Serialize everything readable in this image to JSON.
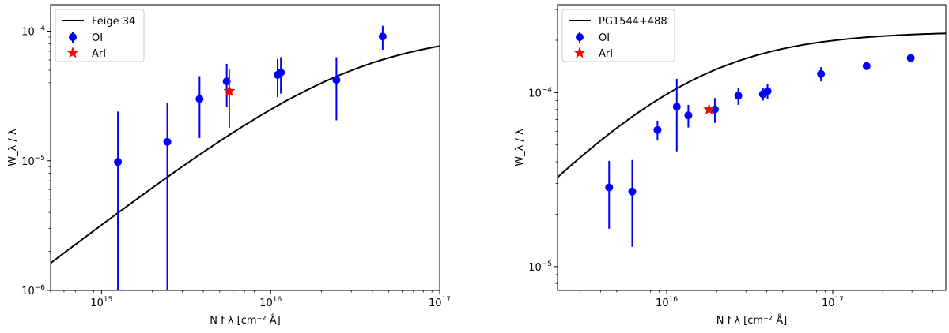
{
  "chart_data": [
    {
      "type": "scatter",
      "xscale": "log",
      "yscale": "log",
      "xlim": [
        500000000000000.0,
        1e+17
      ],
      "ylim": [
        1e-06,
        0.00016
      ],
      "xticks": [
        {
          "value": 1000000000000000.0,
          "base": "10",
          "exp": "15"
        },
        {
          "value": 1e+16,
          "base": "10",
          "exp": "16"
        },
        {
          "value": 1e+17,
          "base": "10",
          "exp": "17"
        }
      ],
      "yticks": [
        {
          "value": 1e-06,
          "base": "10",
          "exp": "−6"
        },
        {
          "value": 1e-05,
          "base": "10",
          "exp": "−5"
        },
        {
          "value": 0.0001,
          "base": "10",
          "exp": "−4"
        }
      ],
      "xlabel": "N f λ [cm⁻² Å]",
      "ylabel": "W_λ / λ",
      "legend_position": "top-left",
      "curve": {
        "name": "Feige 34",
        "color": "#000000",
        "saturation": 0.0001,
        "c_ratio": 0.33
      },
      "series": [
        {
          "name": "OI",
          "color": "#0000ff",
          "marker": "circle",
          "points": [
            {
              "x": 1250000000000000.0,
              "y": 9.8e-06,
              "ylo": 1e-06,
              "yhi": 2.4e-05
            },
            {
              "x": 2450000000000000.0,
              "y": 1.4e-05,
              "ylo": 1e-06,
              "yhi": 2.8e-05
            },
            {
              "x": 3800000000000000.0,
              "y": 3e-05,
              "ylo": 1.5e-05,
              "yhi": 4.5e-05
            },
            {
              "x": 5500000000000000.0,
              "y": 4.1e-05,
              "ylo": 2.6e-05,
              "yhi": 5.6e-05
            },
            {
              "x": 1.1e+16,
              "y": 4.6e-05,
              "ylo": 3.1e-05,
              "yhi": 6.1e-05
            },
            {
              "x": 1.15e+16,
              "y": 4.8e-05,
              "ylo": 3.3e-05,
              "yhi": 6.3e-05
            },
            {
              "x": 2.45e+16,
              "y": 4.2e-05,
              "ylo": 2.05e-05,
              "yhi": 6.3e-05
            },
            {
              "x": 4.6e+16,
              "y": 9.1e-05,
              "ylo": 7.2e-05,
              "yhi": 0.00011
            }
          ]
        },
        {
          "name": "ArI",
          "color": "#ff0000",
          "marker": "star",
          "points": [
            {
              "x": 5700000000000000.0,
              "y": 3.45e-05,
              "ylo": 1.8e-05,
              "yhi": 5.1e-05
            }
          ]
        }
      ]
    },
    {
      "type": "scatter",
      "xscale": "log",
      "yscale": "log",
      "xlim": [
        2200000000000000.0,
        4.8e+17
      ],
      "ylim": [
        7.3e-06,
        0.00032
      ],
      "xticks": [
        {
          "value": 1e+16,
          "base": "10",
          "exp": "16"
        },
        {
          "value": 1e+17,
          "base": "10",
          "exp": "17"
        }
      ],
      "yticks": [
        {
          "value": 1e-05,
          "base": "10",
          "exp": "−5"
        },
        {
          "value": 0.0001,
          "base": "10",
          "exp": "−4"
        }
      ],
      "xlabel": "N f λ [cm⁻² Å]",
      "ylabel": "W_λ / λ",
      "legend_position": "top-left",
      "curve": {
        "name": "PG1544+488",
        "color": "#000000",
        "saturation": 0.000225,
        "c_ratio": 0.77
      },
      "series": [
        {
          "name": "OI",
          "color": "#0000ff",
          "marker": "circle",
          "points": [
            {
              "x": 4500000000000000.0,
              "y": 2.85e-05,
              "ylo": 1.65e-05,
              "yhi": 4.05e-05
            },
            {
              "x": 6200000000000000.0,
              "y": 2.7e-05,
              "ylo": 1.3e-05,
              "yhi": 4.1e-05
            },
            {
              "x": 8800000000000000.0,
              "y": 6.1e-05,
              "ylo": 5.3e-05,
              "yhi": 6.9e-05
            },
            {
              "x": 1.15e+16,
              "y": 8.3e-05,
              "ylo": 4.6e-05,
              "yhi": 0.00012
            },
            {
              "x": 1.35e+16,
              "y": 7.4e-05,
              "ylo": 6.3e-05,
              "yhi": 8.5e-05
            },
            {
              "x": 1.95e+16,
              "y": 8e-05,
              "ylo": 6.7e-05,
              "yhi": 9.3e-05
            },
            {
              "x": 2.7e+16,
              "y": 9.6e-05,
              "ylo": 8.5e-05,
              "yhi": 0.000107
            },
            {
              "x": 3.8e+16,
              "y": 9.8e-05,
              "ylo": 9e-05,
              "yhi": 0.000106
            },
            {
              "x": 4.05e+16,
              "y": 0.000102,
              "ylo": 9.2e-05,
              "yhi": 0.000112
            },
            {
              "x": 8.5e+16,
              "y": 0.000128,
              "ylo": 0.000116,
              "yhi": 0.00014
            },
            {
              "x": 1.6e+17,
              "y": 0.000142,
              "ylo": 0.000136,
              "yhi": 0.000148
            },
            {
              "x": 2.95e+17,
              "y": 0.000158,
              "ylo": 0.000151,
              "yhi": 0.000165
            }
          ]
        },
        {
          "name": "ArI",
          "color": "#ff0000",
          "marker": "star",
          "points": [
            {
              "x": 1.8e+16,
              "y": 8e-05,
              "ylo": 8e-05,
              "yhi": 8e-05
            }
          ]
        }
      ]
    }
  ]
}
